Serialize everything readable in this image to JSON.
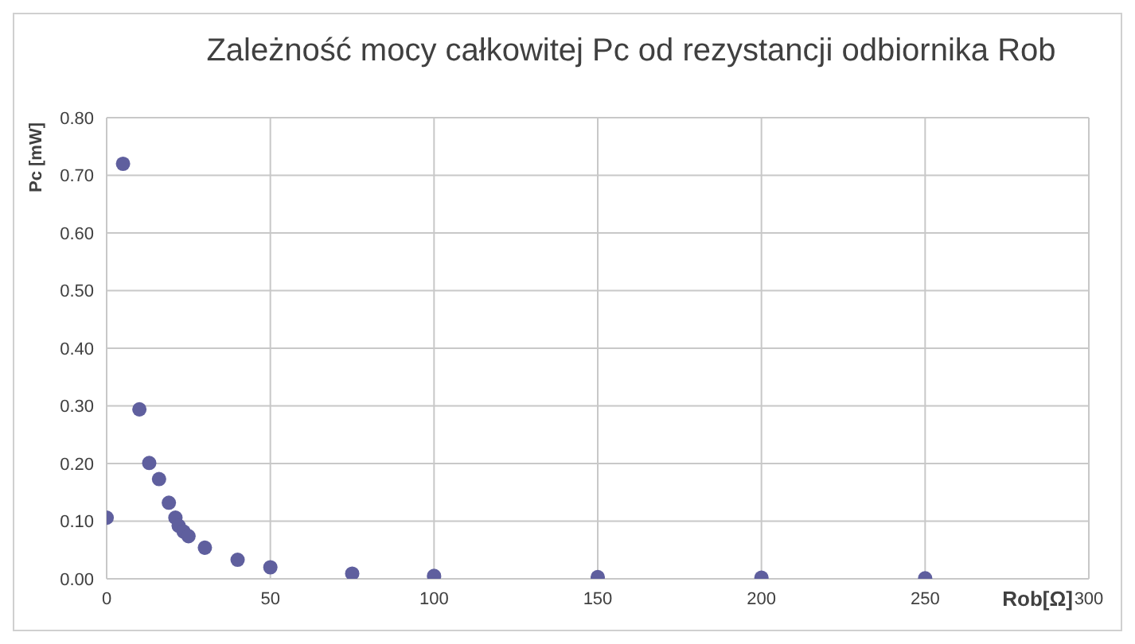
{
  "chart_data": {
    "type": "scatter",
    "title": "Zależność mocy całkowitej Pc od rezystancji odbiornika Rob",
    "xlabel": "Rob[Ω]",
    "ylabel": "Pc [mW]",
    "x": [
      0,
      5,
      10,
      13,
      16,
      19,
      21,
      22,
      23.5,
      25,
      30,
      40,
      50,
      75,
      100,
      150,
      200,
      250
    ],
    "series": [
      {
        "color": "#5f5f9e",
        "values": [
          0.106,
          0.72,
          0.294,
          0.201,
          0.173,
          0.132,
          0.106,
          0.092,
          0.082,
          0.074,
          0.054,
          0.033,
          0.02,
          0.009,
          0.005,
          0.003,
          0.002,
          0.001
        ]
      }
    ],
    "xlim": [
      0,
      300
    ],
    "xticks": [
      0,
      50,
      100,
      150,
      200,
      250,
      300
    ],
    "ylim": [
      0,
      0.8
    ],
    "yticks": [
      {
        "value": 0,
        "label": "0.00"
      },
      {
        "value": 0.1,
        "label": "0.10"
      },
      {
        "value": 0.2,
        "label": "0.20"
      },
      {
        "value": 0.3,
        "label": "0.30"
      },
      {
        "value": 0.4,
        "label": "0.40"
      },
      {
        "value": 0.5,
        "label": "0.50"
      },
      {
        "value": 0.6,
        "label": "0.60"
      },
      {
        "value": 0.7,
        "label": "0.70"
      },
      {
        "value": 0.8,
        "label": "0.80"
      }
    ],
    "grid": true,
    "marker": "circle",
    "legend": false
  }
}
